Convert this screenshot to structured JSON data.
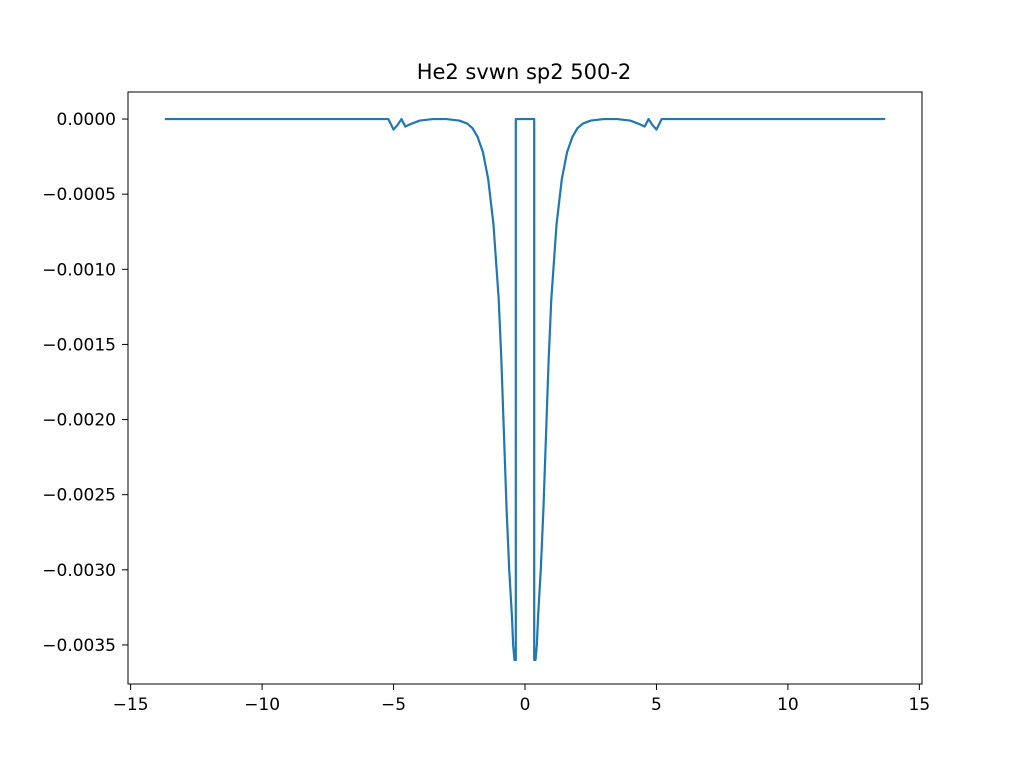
{
  "chart_data": {
    "type": "line",
    "title": "He2 svwn sp2 500-2",
    "xlabel": "",
    "ylabel": "",
    "xlim": [
      -15.1,
      15.1
    ],
    "ylim": [
      -0.00376,
      0.00018
    ],
    "grid": false,
    "legend": "none",
    "x_ticks": [
      -15,
      -10,
      -5,
      0,
      5,
      10,
      15
    ],
    "x_tick_labels": [
      "−15",
      "−10",
      "−5",
      "0",
      "5",
      "10",
      "15"
    ],
    "y_ticks": [
      0,
      -0.0005,
      -0.001,
      -0.0015,
      -0.002,
      -0.0025,
      -0.003,
      -0.0035
    ],
    "y_tick_labels": [
      "0.0000",
      "−0.0005",
      "−0.0010",
      "−0.0015",
      "−0.0020",
      "−0.0025",
      "−0.0030",
      "−0.0035"
    ],
    "series": [
      {
        "color": "#1f77b4",
        "x": [
          -13.7,
          -8.0,
          -5.2,
          -5.0,
          -4.85,
          -4.7,
          -4.55,
          -4.3,
          -4.0,
          -3.5,
          -3.0,
          -2.5,
          -2.2,
          -2.0,
          -1.8,
          -1.6,
          -1.4,
          -1.2,
          -1.0,
          -0.9,
          -0.8,
          -0.7,
          -0.6,
          -0.5,
          -0.45,
          -0.4,
          -0.35,
          -0.35,
          -0.3,
          0.3,
          0.35,
          0.35,
          0.4,
          0.45,
          0.5,
          0.6,
          0.7,
          0.8,
          0.9,
          1.0,
          1.2,
          1.4,
          1.6,
          1.8,
          2.0,
          2.2,
          2.5,
          3.0,
          3.5,
          4.0,
          4.3,
          4.55,
          4.7,
          4.85,
          5.0,
          5.2,
          8.0,
          13.7
        ],
        "y": [
          0,
          0,
          0,
          -7e-05,
          -4e-05,
          0,
          -5e-05,
          -3e-05,
          -1e-05,
          0,
          0,
          -1e-05,
          -3e-05,
          -6e-05,
          -0.00012,
          -0.00022,
          -0.0004,
          -0.0007,
          -0.0012,
          -0.0016,
          -0.0021,
          -0.0026,
          -0.003,
          -0.0033,
          -0.0035,
          -0.0036,
          -0.0036,
          0,
          0,
          0,
          0,
          -0.0036,
          -0.0036,
          -0.0035,
          -0.0033,
          -0.003,
          -0.0026,
          -0.0021,
          -0.0016,
          -0.0012,
          -0.0007,
          -0.0004,
          -0.00022,
          -0.00012,
          -6e-05,
          -3e-05,
          -1e-05,
          0,
          0,
          -1e-05,
          -3e-05,
          -5e-05,
          0,
          -4e-05,
          -7e-05,
          0,
          0,
          0
        ]
      }
    ]
  }
}
